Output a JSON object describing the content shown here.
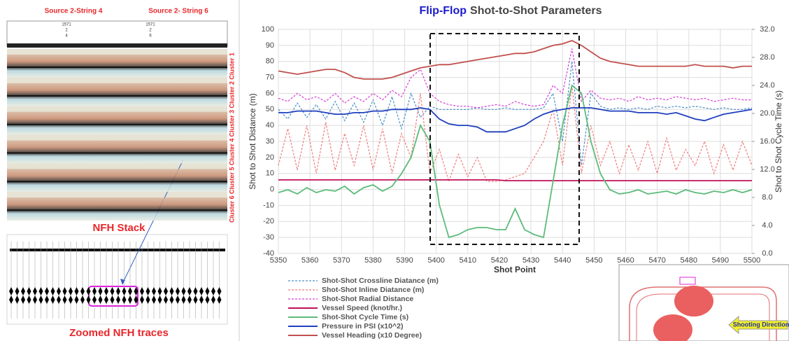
{
  "left_panel": {
    "source_labels": [
      "Source 2-String 4",
      "Source 2- String 6"
    ],
    "header_rows": [
      [
        "1571",
        "1571"
      ],
      [
        "2",
        "2"
      ],
      [
        "4",
        "6"
      ]
    ],
    "cluster_labels": [
      "Cluster 1",
      "Cluster 2",
      "Cluster 3",
      "Cluster 4",
      "Cluster 5",
      "Cluster 6"
    ],
    "stack_label": "NFH Stack",
    "zoom_label": "Zoomed NFH traces"
  },
  "chart_data": {
    "type": "line",
    "title_highlight": "Flip-Flop",
    "title": "Shot-to-Shot Parameters",
    "x_label": "Shot Point",
    "y_label": "Shot to Shot Distance (m)",
    "y2_label": "Shot to Shot Cycle Time (s)",
    "x": [
      5350,
      5353,
      5356,
      5359,
      5362,
      5365,
      5368,
      5371,
      5374,
      5377,
      5380,
      5383,
      5386,
      5389,
      5392,
      5395,
      5398,
      5401,
      5404,
      5407,
      5410,
      5413,
      5416,
      5419,
      5422,
      5425,
      5428,
      5431,
      5434,
      5437,
      5440,
      5443,
      5446,
      5449,
      5452,
      5455,
      5458,
      5461,
      5464,
      5467,
      5470,
      5473,
      5476,
      5479,
      5482,
      5485,
      5488,
      5491,
      5494,
      5497,
      5500
    ],
    "xlim": [
      5350,
      5500
    ],
    "xticks": [
      5350,
      5360,
      5370,
      5380,
      5390,
      5400,
      5410,
      5420,
      5430,
      5440,
      5450,
      5460,
      5470,
      5480,
      5490,
      5500
    ],
    "ylim": [
      -40,
      100
    ],
    "yticks": [
      -40,
      -30,
      -20,
      -10,
      0,
      10,
      20,
      30,
      40,
      50,
      60,
      70,
      80,
      90,
      100
    ],
    "y2lim": [
      0,
      32
    ],
    "y2ticks": [
      {
        "value": 0,
        "label": "0.0"
      },
      {
        "value": 4,
        "label": "4.0"
      },
      {
        "value": 8,
        "label": "8.0"
      },
      {
        "value": 12,
        "label": "12.0"
      },
      {
        "value": 16,
        "label": "16.0"
      },
      {
        "value": 20,
        "label": "20.0"
      },
      {
        "value": 24,
        "label": "24.0"
      },
      {
        "value": 28,
        "label": "28.0"
      },
      {
        "value": 32,
        "label": "32.0"
      }
    ],
    "grid": true,
    "legend": "lower left",
    "series": [
      {
        "name": "Shot-Shot Crossline Diatance (m)",
        "color": "#4a90c8",
        "dash": true,
        "values": [
          50,
          44,
          54,
          45,
          53,
          44,
          55,
          43,
          54,
          42,
          56,
          40,
          58,
          38,
          60,
          45,
          52,
          50,
          50,
          50,
          50,
          51,
          50,
          50,
          51,
          50,
          50,
          50,
          51,
          60,
          30,
          80,
          15,
          60,
          52,
          50,
          51,
          50,
          51,
          50,
          52,
          51,
          52,
          51,
          52,
          51,
          50,
          51,
          50,
          50,
          51
        ]
      },
      {
        "name": "Shot-Shot Inline Diatance (m)",
        "color": "#f07c7c",
        "dash": true,
        "values": [
          15,
          38,
          12,
          40,
          10,
          42,
          12,
          35,
          15,
          40,
          12,
          38,
          10,
          35,
          20,
          60,
          10,
          25,
          5,
          22,
          8,
          20,
          5,
          5,
          6,
          8,
          10,
          20,
          30,
          50,
          15,
          65,
          10,
          40,
          15,
          30,
          10,
          28,
          12,
          30,
          10,
          32,
          12,
          25,
          15,
          30,
          10,
          28,
          12,
          30,
          15
        ]
      },
      {
        "name": "Shot-Shot Radial Distance",
        "color": "#d63fd6",
        "dash": true,
        "values": [
          57,
          55,
          60,
          56,
          58,
          55,
          60,
          54,
          58,
          55,
          60,
          56,
          62,
          58,
          70,
          75,
          60,
          55,
          53,
          52,
          52,
          51,
          52,
          53,
          52,
          55,
          53,
          52,
          53,
          65,
          60,
          88,
          55,
          62,
          57,
          56,
          57,
          55,
          58,
          56,
          57,
          56,
          58,
          57,
          56,
          57,
          55,
          56,
          57,
          56,
          56
        ]
      },
      {
        "name": "Vessel Speed (knot/hr.)",
        "color": "#c0105a",
        "dash": false,
        "values": [
          6,
          6,
          6,
          6,
          6,
          6,
          6,
          6,
          6,
          6,
          6,
          6,
          6,
          6,
          6,
          6,
          6,
          6,
          6,
          6,
          6,
          6,
          6,
          6,
          5.5,
          5.5,
          5.5,
          5.5,
          5.5,
          5.5,
          5.5,
          5.5,
          5.5,
          5.5,
          5.5,
          5.5,
          5.5,
          5.5,
          5.5,
          5.5,
          5.5,
          5.5,
          5.5,
          5.5,
          5.5,
          5.5,
          5.5,
          5.5,
          5.5,
          5.5,
          5.5
        ]
      },
      {
        "name": "Shot-Shot Cycle Time (s)",
        "color": "#5dbb7a",
        "dash": false,
        "axis": "y2",
        "values": [
          8.7,
          9.1,
          8.5,
          9.4,
          8.7,
          9.1,
          8.9,
          9.6,
          8.5,
          9.4,
          9.8,
          8.9,
          9.6,
          11.4,
          13.7,
          18.3,
          16,
          6.9,
          2.3,
          2.7,
          3.4,
          3.7,
          3.7,
          3.4,
          3.4,
          6.4,
          3.4,
          2.7,
          2.3,
          10.3,
          18.3,
          24,
          22.9,
          16,
          11.4,
          9.1,
          8.5,
          8.7,
          9.1,
          8.5,
          8.7,
          8.9,
          8.5,
          9.1,
          8.7,
          8.5,
          8.9,
          8.7,
          9.1,
          8.7,
          9.1
        ]
      },
      {
        "name": "Pressure in PSI (x10^2)",
        "color": "#1f3fbf",
        "dash": false,
        "values": [
          48,
          48,
          49,
          49,
          49,
          48,
          47,
          47,
          48,
          48,
          49,
          49,
          50,
          50,
          50,
          51,
          50,
          44,
          41,
          40,
          40,
          39,
          36,
          36,
          36,
          38,
          40,
          44,
          47,
          49,
          50,
          51,
          51,
          51,
          50,
          49,
          49,
          49,
          48,
          48,
          48,
          47,
          48,
          46,
          44,
          43,
          45,
          47,
          48,
          49,
          50
        ]
      },
      {
        "name": "Vessel Heading (x10 Degree)",
        "color": "#c0504d",
        "dash": false,
        "values": [
          74,
          73,
          72,
          73,
          74,
          75,
          75,
          73,
          70,
          69,
          69,
          69,
          70,
          72,
          74,
          76,
          77,
          78,
          78,
          79,
          80,
          81,
          82,
          83,
          84,
          85,
          85,
          86,
          88,
          90,
          91,
          93,
          90,
          86,
          82,
          80,
          79,
          78,
          77,
          77,
          77,
          77,
          77,
          77,
          78,
          77,
          77,
          77,
          76,
          77,
          77
        ]
      }
    ]
  },
  "inset": {
    "label": "Shooting Direction"
  }
}
